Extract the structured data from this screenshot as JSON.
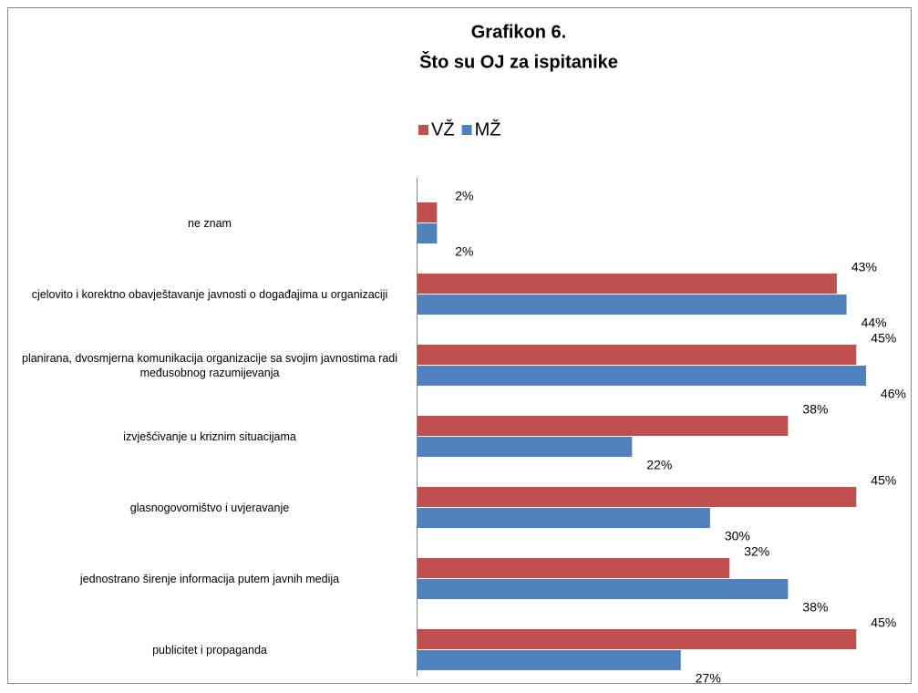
{
  "chart_data": {
    "type": "bar",
    "orientation": "horizontal",
    "title": "Grafikon 6.",
    "subtitle": "Što su OJ za ispitanike",
    "categories": [
      "ne znam",
      "cjelovito i korektno obavještavanje javnosti o događajima u organizaciji",
      "planirana, dvosmjerna komunikacija organizacije sa svojim javnostima radi međusobnog razumijevanja",
      "izvješćivanje u kriznim situacijama",
      "glasnogovorništvo i uvjeravanje",
      "jednostrano širenje informacija putem javnih medija",
      "publicitet i propaganda"
    ],
    "series": [
      {
        "name": "VŽ",
        "color": "#c0504d",
        "values": [
          2,
          43,
          45,
          38,
          45,
          32,
          45
        ],
        "value_labels": [
          "2%",
          "43%",
          "45%",
          "38%",
          "45%",
          "32%",
          "45%"
        ]
      },
      {
        "name": "MŽ",
        "color": "#4f81bd",
        "values": [
          2,
          44,
          46,
          22,
          30,
          38,
          27
        ],
        "value_labels": [
          "2%",
          "44%",
          "46%",
          "22%",
          "30%",
          "38%",
          "27%"
        ]
      }
    ],
    "legend": "top"
  }
}
